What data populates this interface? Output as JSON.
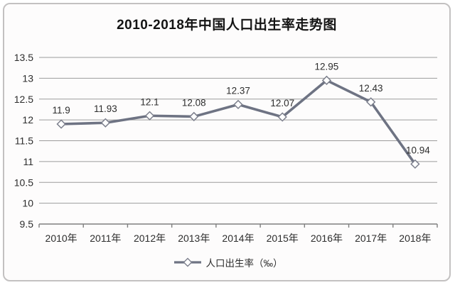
{
  "chart_data": {
    "type": "line",
    "title": "2010-2018年中国人口出生率走势图",
    "categories": [
      "2010年",
      "2011年",
      "2012年",
      "2013年",
      "2014年",
      "2015年",
      "2016年",
      "2017年",
      "2018年"
    ],
    "series": [
      {
        "name": "人口出生率（‰）",
        "values": [
          11.9,
          11.93,
          12.1,
          12.08,
          12.37,
          12.07,
          12.95,
          12.43,
          10.94
        ]
      }
    ],
    "data_labels": [
      "11.9",
      "11.93",
      "12.1",
      "12.08",
      "12.37",
      "12.07",
      "12.95",
      "12.43",
      "10.94"
    ],
    "y_ticks": [
      "13.5",
      "13",
      "12.5",
      "12",
      "11.5",
      "11",
      "10.5",
      "10",
      "9.5"
    ],
    "ylim": [
      9.5,
      13.5
    ],
    "xlabel": "",
    "ylabel": "",
    "grid": true,
    "legend_position": "bottom",
    "marker": "diamond",
    "colors": {
      "line": "#6e7383",
      "marker_fill": "#ffffff",
      "marker_stroke": "#7c7f8c",
      "gridline": "#9c9c9c",
      "axis": "#7f7f7f",
      "tick_text": "#2d2d2d",
      "title_text": "#141414",
      "card_border": "#c3c1c1",
      "background": "#fdfcfc"
    }
  }
}
